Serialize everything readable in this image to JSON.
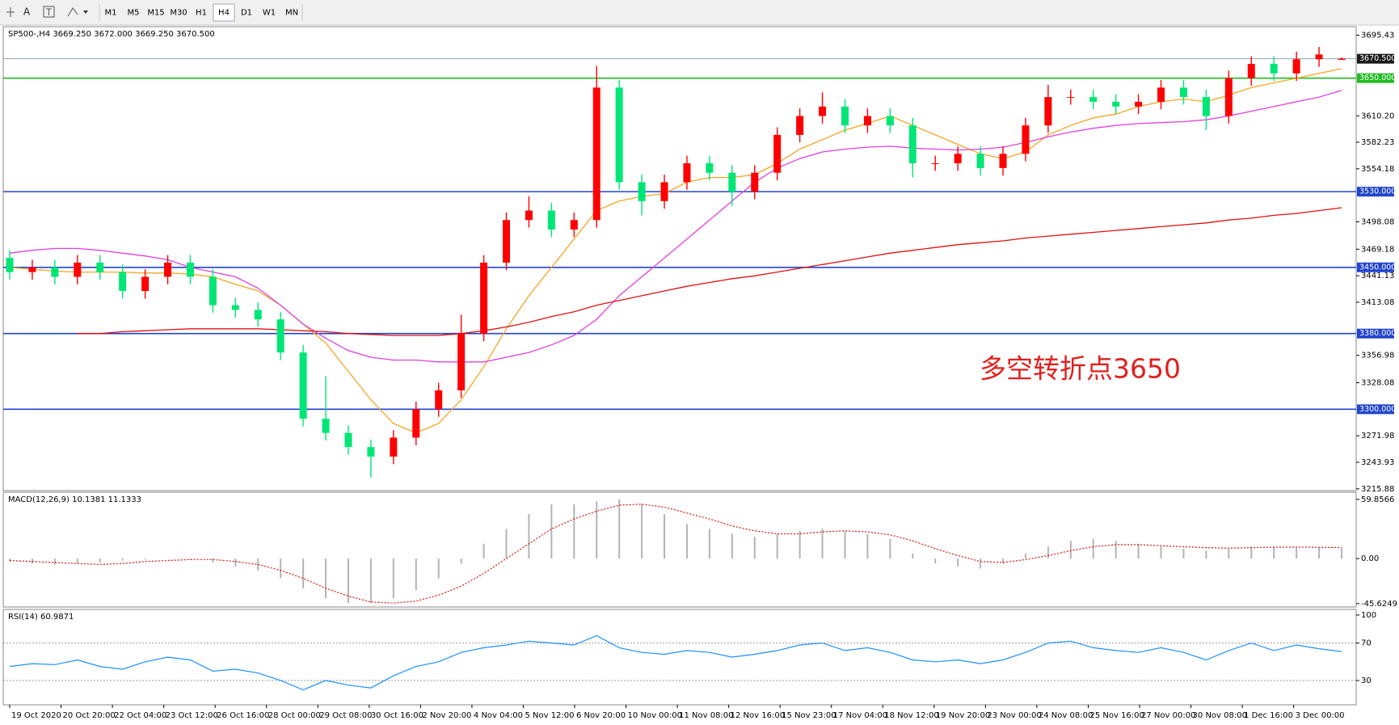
{
  "toolbar": {
    "text_tool": "A",
    "timeframes": [
      "M1",
      "M5",
      "M15",
      "M30",
      "H1",
      "H4",
      "D1",
      "W1",
      "MN"
    ],
    "active": 5
  },
  "chart_data": [
    {
      "type": "candlestick",
      "title": "SP500-,H4 3669.250 3672.000 3669.250 3670.500",
      "annotation": "多空转折点3650",
      "up_color": "#ff0000",
      "down_color": "#00e676",
      "open": [
        3460,
        3445,
        3450,
        3440,
        3455,
        3445,
        3425,
        3440,
        3455,
        3440,
        3410,
        3405,
        3395,
        3360,
        3290,
        3275,
        3260,
        3250,
        3270,
        3300,
        3320,
        3380,
        3455,
        3500,
        3510,
        3490,
        3500,
        3640,
        3540,
        3520,
        3540,
        3560,
        3550,
        3530,
        3550,
        3590,
        3610,
        3620,
        3600,
        3610,
        3600,
        3560,
        3560,
        3570,
        3555,
        3570,
        3600,
        3630,
        3630,
        3625,
        3620,
        3625,
        3640,
        3630,
        3610,
        3650,
        3665,
        3655,
        3670,
        3669.25
      ],
      "high": [
        3468,
        3458,
        3458,
        3463,
        3463,
        3453,
        3448,
        3463,
        3463,
        3448,
        3418,
        3413,
        3403,
        3368,
        3335,
        3283,
        3268,
        3278,
        3308,
        3328,
        3400,
        3463,
        3508,
        3525,
        3518,
        3508,
        3663,
        3648,
        3548,
        3548,
        3568,
        3568,
        3558,
        3558,
        3598,
        3618,
        3635,
        3628,
        3618,
        3618,
        3608,
        3568,
        3578,
        3578,
        3578,
        3608,
        3643,
        3638,
        3638,
        3633,
        3633,
        3648,
        3648,
        3638,
        3658,
        3673,
        3673,
        3678,
        3683,
        3672
      ],
      "low": [
        3437,
        3437,
        3432,
        3432,
        3437,
        3417,
        3417,
        3432,
        3432,
        3402,
        3397,
        3387,
        3352,
        3282,
        3267,
        3252,
        3228,
        3242,
        3262,
        3292,
        3312,
        3372,
        3447,
        3492,
        3482,
        3482,
        3492,
        3532,
        3505,
        3512,
        3532,
        3542,
        3515,
        3522,
        3542,
        3582,
        3602,
        3592,
        3592,
        3592,
        3545,
        3552,
        3552,
        3547,
        3547,
        3562,
        3592,
        3622,
        3617,
        3612,
        3612,
        3617,
        3622,
        3595,
        3602,
        3642,
        3647,
        3647,
        3662,
        3669.25
      ],
      "close": [
        3445,
        3450,
        3440,
        3455,
        3445,
        3425,
        3440,
        3455,
        3440,
        3410,
        3405,
        3395,
        3360,
        3290,
        3275,
        3260,
        3250,
        3270,
        3300,
        3320,
        3380,
        3455,
        3500,
        3510,
        3490,
        3500,
        3640,
        3540,
        3520,
        3540,
        3560,
        3550,
        3530,
        3550,
        3590,
        3610,
        3620,
        3600,
        3610,
        3600,
        3560,
        3560,
        3570,
        3555,
        3570,
        3600,
        3630,
        3630,
        3625,
        3620,
        3625,
        3640,
        3630,
        3610,
        3650,
        3665,
        3655,
        3670,
        3675,
        3670.5
      ],
      "series": [
        {
          "color": "#f5a623",
          "values": [
            3450,
            3448,
            3446,
            3445,
            3445,
            3445,
            3444,
            3444,
            3443,
            3440,
            3432,
            3425,
            3410,
            3390,
            3370,
            3340,
            3310,
            3285,
            3275,
            3285,
            3310,
            3345,
            3385,
            3420,
            3450,
            3480,
            3510,
            3520,
            3525,
            3528,
            3540,
            3545,
            3545,
            3548,
            3560,
            3575,
            3585,
            3595,
            3602,
            3610,
            3600,
            3590,
            3580,
            3570,
            3565,
            3572,
            3590,
            3600,
            3608,
            3612,
            3620,
            3625,
            3628,
            3625,
            3632,
            3640,
            3645,
            3650,
            3655,
            3660
          ]
        },
        {
          "color": "#e040e0",
          "values": [
            3465,
            3468,
            3470,
            3470,
            3468,
            3465,
            3462,
            3458,
            3450,
            3445,
            3440,
            3428,
            3410,
            3390,
            3375,
            3362,
            3355,
            3352,
            3352,
            3350,
            3350,
            3350,
            3355,
            3360,
            3368,
            3378,
            3395,
            3420,
            3440,
            3460,
            3480,
            3500,
            3520,
            3540,
            3555,
            3565,
            3572,
            3575,
            3577,
            3578,
            3576,
            3575,
            3574,
            3575,
            3577,
            3582,
            3588,
            3593,
            3597,
            3600,
            3602,
            3603,
            3604,
            3606,
            3610,
            3615,
            3620,
            3625,
            3630,
            3637
          ]
        },
        {
          "color": "#e01010",
          "values": [
            null,
            null,
            null,
            3380,
            3380,
            3382,
            3383,
            3384,
            3385,
            3385,
            3385,
            3385,
            3384,
            3383,
            3382,
            3380,
            3379,
            3378,
            3378,
            3378,
            3380,
            3383,
            3387,
            3392,
            3398,
            3403,
            3410,
            3415,
            3420,
            3425,
            3430,
            3434,
            3438,
            3441,
            3445,
            3449,
            3453,
            3457,
            3461,
            3465,
            3468,
            3471,
            3474,
            3476,
            3478,
            3481,
            3483,
            3485,
            3487,
            3489,
            3491,
            3493,
            3495,
            3497,
            3500,
            3502,
            3505,
            3507,
            3510,
            3513
          ]
        }
      ],
      "levels": [
        {
          "value": 3650,
          "label": "3650.000",
          "color": "#22bb22"
        },
        {
          "value": 3530,
          "label": "3530.000",
          "color": "#2244cc"
        },
        {
          "value": 3450,
          "label": "3450.000",
          "color": "#2244cc"
        },
        {
          "value": 3380,
          "label": "3380.000",
          "color": "#2244cc"
        },
        {
          "value": 3300,
          "label": "3300.000",
          "color": "#2244cc"
        }
      ],
      "current": {
        "value": 3670.5,
        "label": "3670.500"
      },
      "ylim": [
        3214,
        3704.4
      ],
      "yticks": [
        {
          "value": 3695.43,
          "label": "3695.43"
        },
        {
          "value": 3610.2,
          "label": "3610.20"
        },
        3582.23,
        3554.18,
        3498.08,
        3469.18,
        3441.13,
        3413.08,
        3356.98,
        3328.08,
        3271.98,
        3243.93,
        3215.88
      ],
      "x_labels": [
        "19 Oct 2020",
        "20 Oct 20:00",
        "22 Oct 04:00",
        "23 Oct 12:00",
        "26 Oct 16:00",
        "28 Oct 00:00",
        "29 Oct 08:00",
        "30 Oct 16:00",
        "2 Nov 20:00",
        "4 Nov 04:00",
        "5 Nov 12:00",
        "6 Nov 20:00",
        "10 Nov 00:00",
        "11 Nov 08:00",
        "12 Nov 16:00",
        "15 Nov 23:00",
        "17 Nov 04:00",
        "18 Nov 12:00",
        "19 Nov 20:00",
        "23 Nov 00:00",
        "24 Nov 08:00",
        "25 Nov 16:00",
        "27 Nov 00:00",
        "30 Nov 08:00",
        "1 Dec 16:00",
        "3 Dec 00:00"
      ]
    },
    {
      "type": "macd",
      "title": "MACD(12,26,9) 10.1381 11.1333",
      "color": "#b4b4b4",
      "signal_color": "#e01010",
      "values": [
        -3,
        -5,
        -6,
        -5,
        -4,
        -2,
        -1,
        0,
        -1,
        -4,
        -8,
        -12,
        -20,
        -30,
        -40,
        -45,
        -45,
        -40,
        -32,
        -20,
        -5,
        15,
        30,
        45,
        55,
        55,
        58,
        60,
        55,
        45,
        35,
        30,
        25,
        22,
        25,
        28,
        30,
        28,
        25,
        20,
        5,
        -5,
        -8,
        -10,
        -5,
        5,
        12,
        18,
        20,
        18,
        15,
        12,
        10,
        8,
        10,
        12,
        12,
        11,
        11,
        10.1381
      ],
      "signal": [
        -2,
        -3,
        -4,
        -5,
        -6,
        -5,
        -3,
        -2,
        -1,
        -1,
        -3,
        -6,
        -12,
        -20,
        -30,
        -38,
        -44,
        -45,
        -43,
        -37,
        -28,
        -15,
        0,
        15,
        30,
        40,
        48,
        54,
        55,
        52,
        46,
        40,
        33,
        28,
        25,
        25,
        27,
        28,
        27,
        24,
        18,
        10,
        3,
        -3,
        -4,
        -1,
        3,
        8,
        12,
        14,
        14,
        13,
        12,
        11,
        10.5,
        11,
        11.5,
        11.5,
        11.3,
        11.1333
      ],
      "ylim": [
        -49,
        67.1
      ],
      "yticks": [
        59.8566,
        {
          "value": 0,
          "label": "0.00"
        },
        -45.6249
      ]
    },
    {
      "type": "line",
      "title": "RSI(14) 60.9871",
      "color": "#1e90ff",
      "values": [
        45,
        48,
        47,
        52,
        45,
        42,
        50,
        55,
        52,
        40,
        42,
        38,
        30,
        20,
        30,
        25,
        22,
        35,
        45,
        50,
        60,
        65,
        68,
        72,
        70,
        68,
        78,
        65,
        60,
        58,
        62,
        60,
        55,
        58,
        62,
        68,
        70,
        62,
        65,
        60,
        52,
        50,
        52,
        48,
        52,
        60,
        70,
        72,
        65,
        62,
        60,
        65,
        60,
        52,
        62,
        70,
        62,
        68,
        64,
        60.9871
      ],
      "levels": [
        70,
        30
      ],
      "ylim": [
        4,
        106
      ],
      "yticks": [
        100,
        70,
        30
      ]
    }
  ]
}
